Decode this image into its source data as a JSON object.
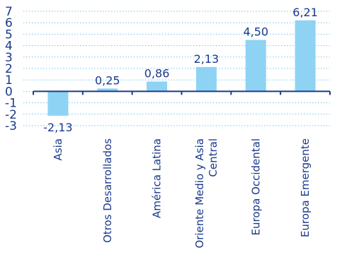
{
  "chart_data": {
    "type": "bar",
    "categories": [
      "Asia",
      "Otros Desarrollados",
      "América Latina",
      "Oriente Medio y Asia Central",
      "Europa Occidental",
      "Europa Emergente"
    ],
    "category_label_lines": [
      [
        "Asia"
      ],
      [
        "Otros Desarrollados"
      ],
      [
        "América Latina"
      ],
      [
        "Oriente Medio y Asia",
        "Central"
      ],
      [
        "Europa Occidental"
      ],
      [
        "Europa Emergente"
      ]
    ],
    "values": [
      -2.13,
      0.25,
      0.86,
      2.13,
      4.5,
      6.21
    ],
    "data_labels": [
      "-2,13",
      "0,25",
      "0,86",
      "2,13",
      "4,50",
      "6,21"
    ],
    "yticks": [
      "7",
      "6",
      "5",
      "4",
      "3",
      "2",
      "1",
      "0",
      "-1",
      "-2",
      "-3"
    ],
    "ylim": [
      -3,
      7
    ],
    "grid": true,
    "title": "",
    "xlabel": "",
    "ylabel": "",
    "colors": {
      "bar": "#8ed3f4",
      "text": "#1b3a8c",
      "grid": "#6ec4ee"
    }
  }
}
